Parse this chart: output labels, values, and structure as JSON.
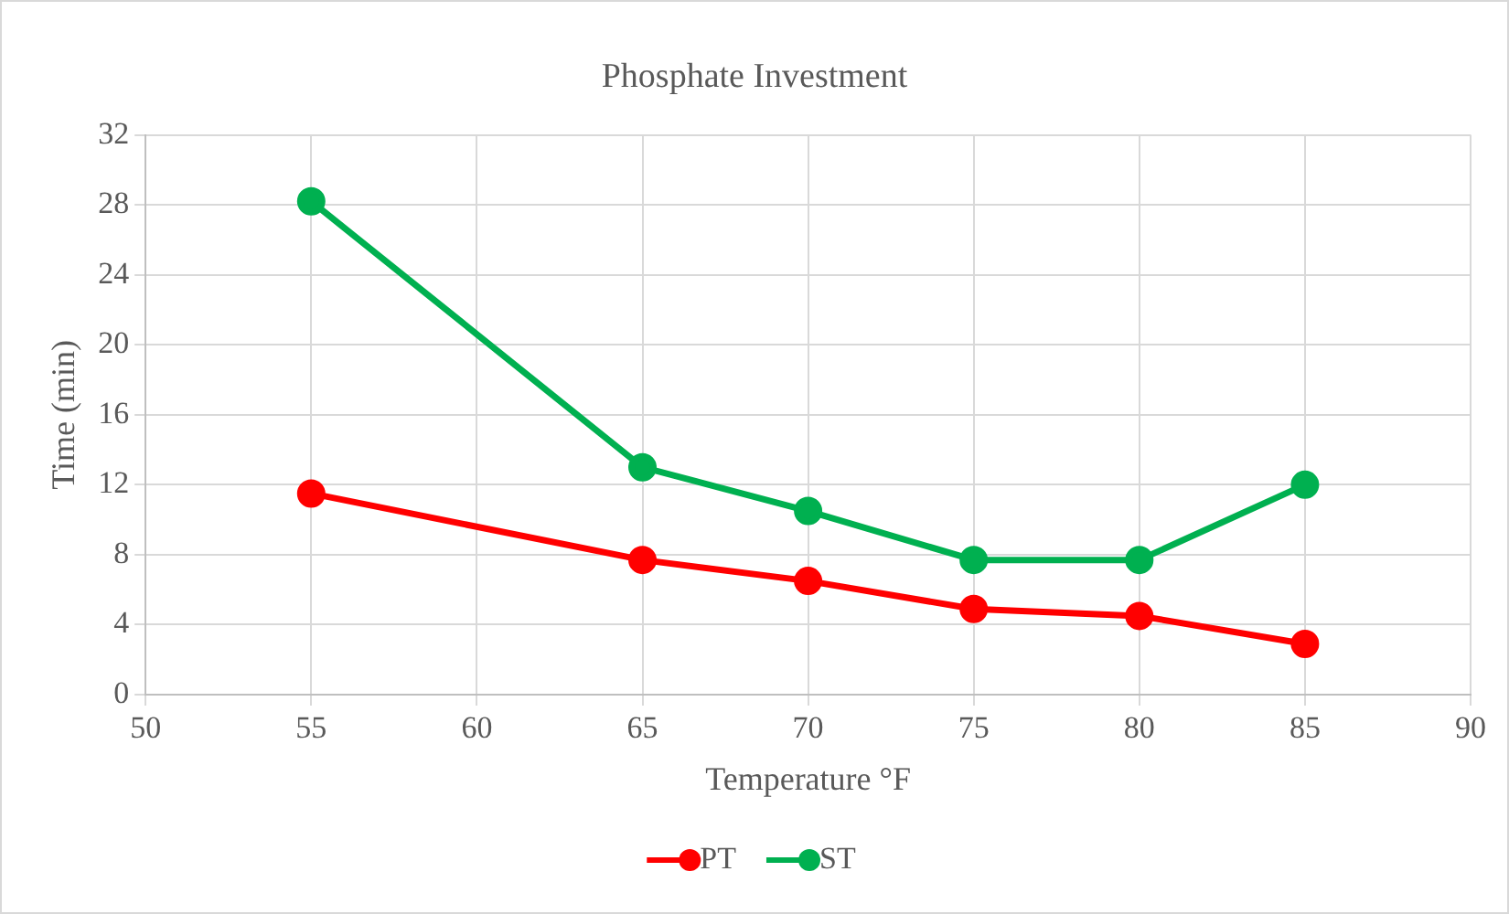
{
  "chart_data": {
    "type": "line",
    "title": "Phosphate Investment",
    "xlabel": "Temperature °F",
    "ylabel": "Time (min)",
    "x": [
      55,
      65,
      70,
      75,
      80,
      85
    ],
    "series": [
      {
        "name": "PT",
        "color": "#ff0000",
        "values": [
          11.5,
          7.7,
          6.5,
          4.9,
          4.5,
          2.9
        ]
      },
      {
        "name": "ST",
        "color": "#00b050",
        "values": [
          28.2,
          13,
          10.5,
          7.7,
          7.7,
          12
        ]
      }
    ],
    "xlim": [
      50,
      90
    ],
    "xticks": [
      50,
      55,
      60,
      65,
      70,
      75,
      80,
      85,
      90
    ],
    "ylim": [
      0,
      32
    ],
    "yticks": [
      0,
      4,
      8,
      12,
      16,
      20,
      24,
      28,
      32
    ],
    "grid": true,
    "legend": "bottom",
    "marker": "circle",
    "line_style": "solid"
  }
}
